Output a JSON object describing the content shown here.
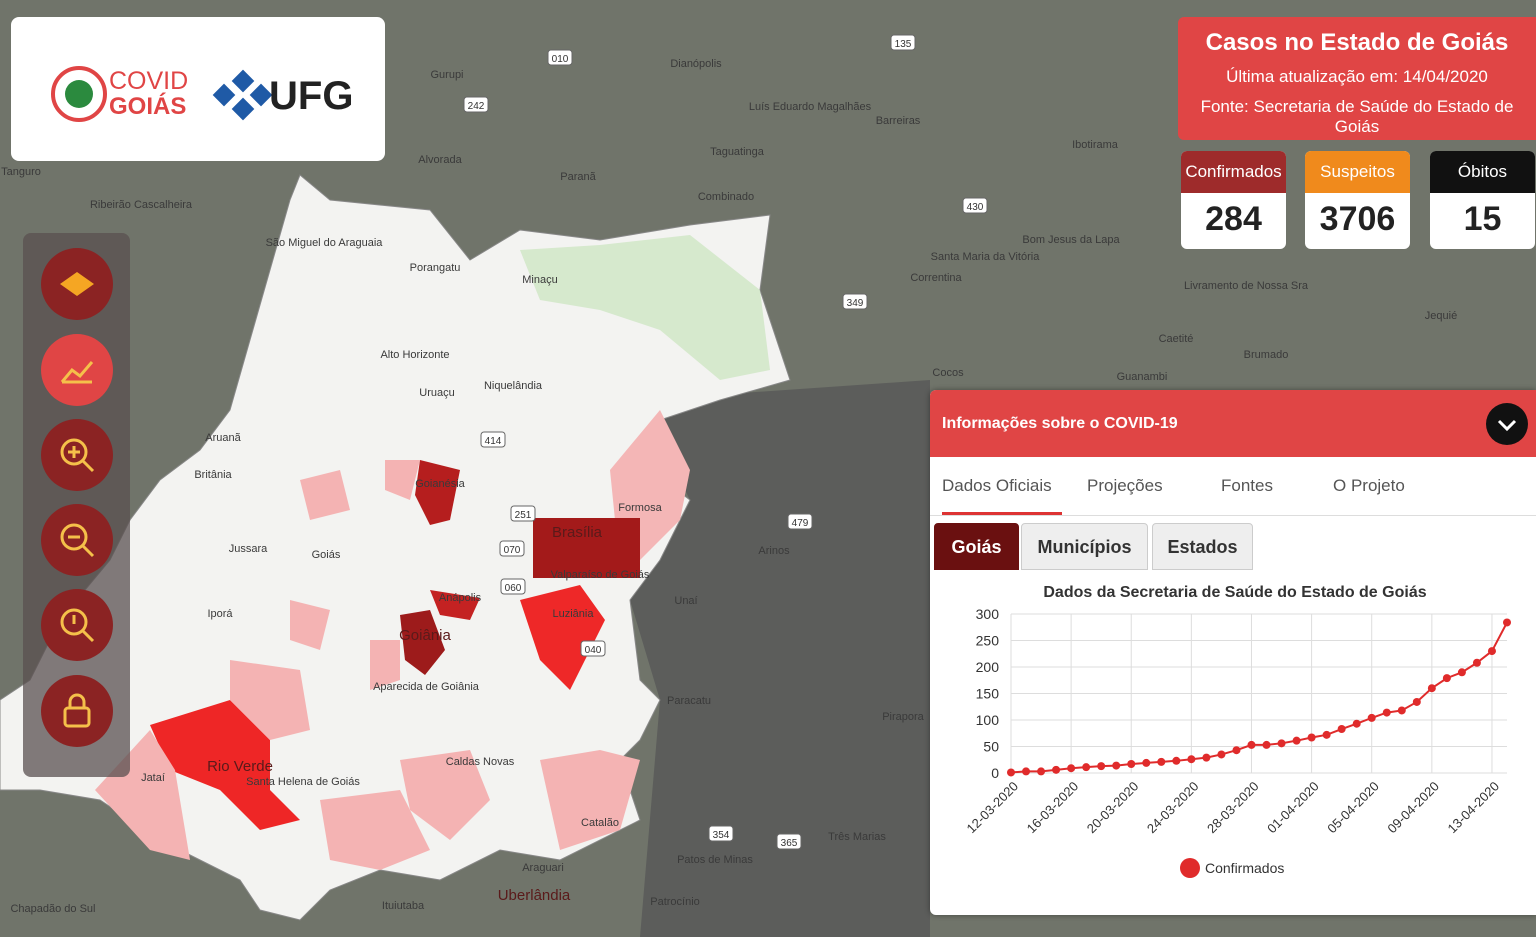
{
  "header": {
    "logo_covid": "COVID",
    "logo_goias": "GOIÁS",
    "logo_ufg": "UFG"
  },
  "summary": {
    "title": "Casos no Estado de Goiás",
    "updated": "Última atualização em: 14/04/2020",
    "source": "Fonte: Secretaria de Saúde do Estado de Goiás"
  },
  "stats": [
    {
      "label": "Confirmados",
      "value": 284
    },
    {
      "label": "Suspeitos",
      "value": 3706
    },
    {
      "label": "Óbitos",
      "value": 15
    }
  ],
  "panel": {
    "title": "Informações sobre o COVID-19",
    "tabs": [
      "Dados Oficiais",
      "Projeções",
      "Fontes",
      "O Projeto"
    ],
    "subtabs": [
      "Goiás",
      "Municípios",
      "Estados"
    ]
  },
  "chart_data": {
    "type": "line",
    "title": "Dados da Secretaria de Saúde do Estado de Goiás",
    "categories": [
      "12-03-2020",
      null,
      null,
      null,
      "16-03-2020",
      null,
      null,
      null,
      "20-03-2020",
      null,
      null,
      null,
      "24-03-2020",
      null,
      null,
      null,
      "28-03-2020",
      null,
      null,
      null,
      "01-04-2020",
      null,
      null,
      null,
      "05-04-2020",
      null,
      null,
      null,
      "09-04-2020",
      null,
      null,
      null,
      "13-04-2020",
      null
    ],
    "series": [
      {
        "name": "Confirmados",
        "color": "#e02b2b",
        "values": [
          1,
          3,
          3,
          6,
          9,
          11,
          13,
          14,
          17,
          19,
          21,
          23,
          26,
          29,
          35,
          43,
          53,
          53,
          56,
          61,
          67,
          72,
          83,
          93,
          104,
          114,
          118,
          134,
          160,
          179,
          190,
          208,
          230,
          284
        ]
      }
    ],
    "ylim": [
      0,
      300
    ],
    "yticks": [
      0,
      50,
      100,
      150,
      200,
      250,
      300
    ],
    "grid": true
  },
  "map": {
    "labels": [
      "São Miguel do Araguaia",
      "Porangatu",
      "Minaçu",
      "Alto Horizonte",
      "Uruaçu",
      "Niquelândia",
      "Aruanã",
      "Britânia",
      "Jussara",
      "Goiás",
      "Iporá",
      "Goianésia",
      "Brasília",
      "Formosa",
      "Valparaíso de Goiás",
      "Anápolis",
      "Luziânia",
      "Goiânia",
      "Aparecida de Goiânia",
      "Rio Verde",
      "Jataí",
      "Santa Helena de Goiás",
      "Caldas Novas",
      "Catalão",
      "Uberlândia",
      "Araguari",
      "Ituiutaba",
      "Patrocínio",
      "Patos de Minas",
      "Paracatu",
      "Unaí",
      "Arinos",
      "Barreiras",
      "Luís Eduardo Magalhães",
      "Dianópolis",
      "Taguatinga",
      "Paranã",
      "Gurupi",
      "Alvorada",
      "Combinado",
      "Ibotirama",
      "Bom Jesus da Lapa",
      "Santa Maria da Vitória",
      "Correntina",
      "Livramento de Nossa Sra",
      "Caetité",
      "Brumado",
      "Guanambi",
      "Jequié",
      "Cocos",
      "Pirapora",
      "Três Marias",
      "Ribeirão Cascalheira",
      "Tanguro",
      "Chapadão do Sul"
    ],
    "roads": [
      "010",
      "242",
      "135",
      "430",
      "349",
      "251",
      "414",
      "070",
      "060",
      "040",
      "479",
      "365",
      "354"
    ]
  }
}
